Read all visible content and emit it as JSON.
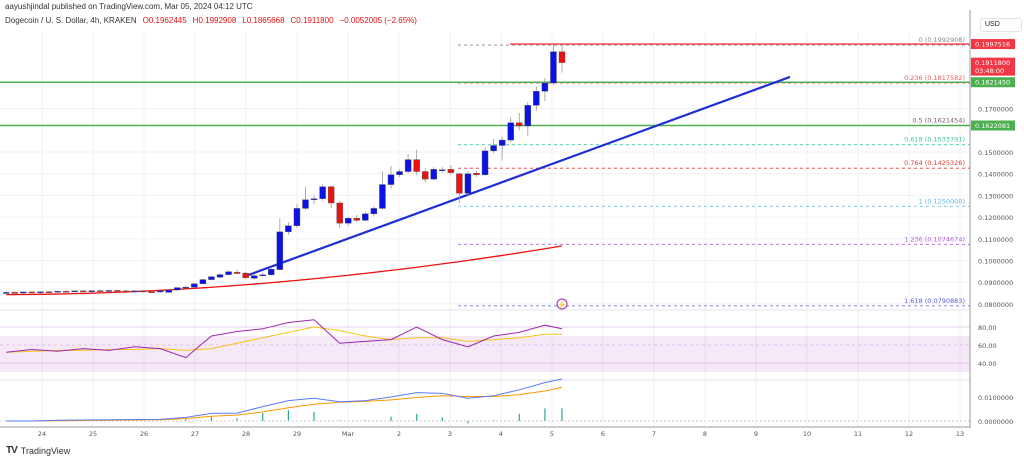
{
  "published": "aayushjindal published on TradingView.com, Mar 05, 2024 04:12 UTC",
  "legend": {
    "symbol": "Dogecoin / U. S. Dollar, 4h, KRAKEN",
    "open": "O0.1962445",
    "high": "H0.1992908",
    "low": "L0.1865668",
    "close": "C0.1911800",
    "change": "−0.0052005 (−2.65%)"
  },
  "currency_button": "USD",
  "brand": "TradingView",
  "colors": {
    "up": "#0a12e6",
    "down": "#ee1111",
    "ema": "#ee1111",
    "trend": "#1f2fd6",
    "green": "#4caf50",
    "rsi": "#9c27b0",
    "rsi_ma": "#f5c518",
    "macd": "#5b7cfa",
    "signal": "#ff9800",
    "hist": "#26a69a"
  },
  "price_axis": {
    "ticks": [
      "0.1700000",
      "0.1500000",
      "0.1400000",
      "0.1300000",
      "0.1200000",
      "0.1100000",
      "0.1000000",
      "0.0900000",
      "0.0800000"
    ],
    "tick_values": [
      0.17,
      0.15,
      0.14,
      0.13,
      0.12,
      0.11,
      0.1,
      0.09,
      0.08
    ],
    "badges": [
      {
        "text": "0.1997516",
        "value": 0.1997516,
        "color": "#f23645"
      },
      {
        "text": "0.1911800",
        "sub": "03:48:00",
        "value": 0.19118,
        "color": "#f23645"
      },
      {
        "text": "0.1821450",
        "value": 0.182145,
        "color": "#4caf50"
      },
      {
        "text": "0.1622081",
        "value": 0.1622081,
        "color": "#4caf50"
      }
    ]
  },
  "rsi_axis": [
    "80.00",
    "60.00",
    "40.00"
  ],
  "macd_axis": [
    "0.0100000",
    "0.0000000"
  ],
  "time_axis": [
    "24",
    "25",
    "26",
    "27",
    "28",
    "29",
    "Mar",
    "2",
    "3",
    "4",
    "5",
    "6",
    "7",
    "8",
    "9",
    "10",
    "11",
    "12",
    "13"
  ],
  "fib": [
    {
      "label": "0 (0.1992908)",
      "value": 0.1992908,
      "color": "#888888"
    },
    {
      "label": "0.236 (0.1817582)",
      "value": 0.1817582,
      "color": "#e65c5c"
    },
    {
      "label": "0.5 (0.1621454)",
      "value": 0.1621454,
      "color": "#7a5a6a"
    },
    {
      "label": "0.618 (0.1533791)",
      "value": 0.1533791,
      "color": "#3cc8a0"
    },
    {
      "label": "0.764 (0.1425326)",
      "value": 0.1425326,
      "color": "#e53935"
    },
    {
      "label": "1 (0.1250000)",
      "value": 0.125,
      "color": "#5ab8e8"
    },
    {
      "label": "1.236 (0.1074674)",
      "value": 0.1074674,
      "color": "#b45ad8"
    },
    {
      "label": "1.618 (0.0790883)",
      "value": 0.0790883,
      "color": "#5b5bd6"
    }
  ],
  "horizontal_levels": [
    {
      "value": 0.182145,
      "color": "#4caf50"
    },
    {
      "value": 0.1622081,
      "color": "#4caf50"
    },
    {
      "value": 0.1997516,
      "color": "#f23645"
    }
  ],
  "candles": [
    [
      0.085,
      0.0856,
      0.0846,
      0.0853
    ],
    [
      0.0853,
      0.0857,
      0.0848,
      0.085
    ],
    [
      0.085,
      0.0856,
      0.0847,
      0.0855
    ],
    [
      0.0855,
      0.0859,
      0.085,
      0.0853
    ],
    [
      0.0853,
      0.0858,
      0.0849,
      0.0856
    ],
    [
      0.0856,
      0.086,
      0.0851,
      0.0854
    ],
    [
      0.0854,
      0.086,
      0.0851,
      0.0858
    ],
    [
      0.0858,
      0.0862,
      0.0853,
      0.0857
    ],
    [
      0.0857,
      0.0862,
      0.0853,
      0.086
    ],
    [
      0.086,
      0.0864,
      0.0855,
      0.0858
    ],
    [
      0.0858,
      0.0863,
      0.0854,
      0.0861
    ],
    [
      0.0861,
      0.0866,
      0.0857,
      0.0859
    ],
    [
      0.0859,
      0.0864,
      0.0855,
      0.0862
    ],
    [
      0.0862,
      0.0866,
      0.0857,
      0.086
    ],
    [
      0.086,
      0.0865,
      0.0856,
      0.0858
    ],
    [
      0.0858,
      0.0863,
      0.0853,
      0.086
    ],
    [
      0.086,
      0.0864,
      0.0852,
      0.0856
    ],
    [
      0.0856,
      0.086,
      0.085,
      0.0853
    ],
    [
      0.0855,
      0.0862,
      0.0851,
      0.0861
    ],
    [
      0.0853,
      0.0866,
      0.0851,
      0.0864
    ],
    [
      0.0864,
      0.0878,
      0.086,
      0.0875
    ],
    [
      0.0875,
      0.0886,
      0.0872,
      0.0877
    ],
    [
      0.0877,
      0.0895,
      0.0874,
      0.0893
    ],
    [
      0.0893,
      0.0915,
      0.089,
      0.0912
    ],
    [
      0.0912,
      0.093,
      0.0908,
      0.0925
    ],
    [
      0.0923,
      0.094,
      0.0918,
      0.0935
    ],
    [
      0.0935,
      0.0955,
      0.093,
      0.0948
    ],
    [
      0.0946,
      0.0958,
      0.0938,
      0.094
    ],
    [
      0.0942,
      0.0948,
      0.0915,
      0.092
    ],
    [
      0.0918,
      0.0935,
      0.0912,
      0.093
    ],
    [
      0.0932,
      0.0945,
      0.0926,
      0.0934
    ],
    [
      0.0934,
      0.097,
      0.093,
      0.096
    ],
    [
      0.0958,
      0.1195,
      0.0955,
      0.1132
    ],
    [
      0.1132,
      0.1175,
      0.112,
      0.116
    ],
    [
      0.116,
      0.126,
      0.115,
      0.124
    ],
    [
      0.124,
      0.134,
      0.1232,
      0.128
    ],
    [
      0.128,
      0.13,
      0.126,
      0.1285
    ],
    [
      0.1285,
      0.135,
      0.1275,
      0.134
    ],
    [
      0.134,
      0.1345,
      0.124,
      0.1265
    ],
    [
      0.1265,
      0.1275,
      0.115,
      0.1172
    ],
    [
      0.1172,
      0.12,
      0.116,
      0.1195
    ],
    [
      0.1195,
      0.121,
      0.1178,
      0.1185
    ],
    [
      0.1185,
      0.1225,
      0.118,
      0.1215
    ],
    [
      0.1215,
      0.125,
      0.1205,
      0.124
    ],
    [
      0.124,
      0.141,
      0.1235,
      0.135
    ],
    [
      0.135,
      0.1435,
      0.133,
      0.1395
    ],
    [
      0.1395,
      0.142,
      0.1385,
      0.141
    ],
    [
      0.141,
      0.149,
      0.14,
      0.1465
    ],
    [
      0.1465,
      0.151,
      0.1395,
      0.141
    ],
    [
      0.141,
      0.1425,
      0.136,
      0.1375
    ],
    [
      0.1375,
      0.143,
      0.137,
      0.142
    ],
    [
      0.1415,
      0.143,
      0.1405,
      0.1418
    ],
    [
      0.142,
      0.144,
      0.1395,
      0.1405
    ],
    [
      0.14,
      0.1405,
      0.1265,
      0.131
    ],
    [
      0.131,
      0.141,
      0.13,
      0.14
    ],
    [
      0.1402,
      0.1415,
      0.1385,
      0.1395
    ],
    [
      0.1395,
      0.152,
      0.139,
      0.1505
    ],
    [
      0.1505,
      0.156,
      0.1495,
      0.153
    ],
    [
      0.153,
      0.157,
      0.146,
      0.1555
    ],
    [
      0.1555,
      0.166,
      0.1545,
      0.1635
    ],
    [
      0.1635,
      0.168,
      0.16,
      0.162
    ],
    [
      0.162,
      0.173,
      0.1575,
      0.1715
    ],
    [
      0.1715,
      0.18,
      0.169,
      0.178
    ],
    [
      0.178,
      0.184,
      0.1735,
      0.1818
    ],
    [
      0.1818,
      0.1993,
      0.181,
      0.1962
    ],
    [
      0.1962,
      0.1993,
      0.1866,
      0.1912
    ]
  ],
  "ema_start": 0.0843,
  "ema_end": 0.1067,
  "trendline": [
    0.0929,
    0.1846
  ],
  "rsi": [
    52,
    55,
    53,
    56,
    54,
    58,
    56,
    46,
    70,
    75,
    78,
    85,
    88,
    62,
    64,
    66,
    80,
    66,
    58,
    70,
    74,
    82,
    78
  ],
  "rsi_ma": [
    52,
    53,
    54,
    54,
    55,
    55,
    56,
    54,
    56,
    62,
    68,
    74,
    80,
    76,
    70,
    66,
    68,
    68,
    64,
    66,
    68,
    72,
    72
  ],
  "macd": [
    0,
    0,
    0.0003,
    0.0004,
    0.0005,
    0.0006,
    0.0007,
    0.0015,
    0.0032,
    0.0033,
    0.006,
    0.0085,
    0.0095,
    0.008,
    0.0085,
    0.01,
    0.0118,
    0.0115,
    0.0095,
    0.0105,
    0.013,
    0.016,
    0.0175
  ],
  "signal": [
    0,
    0,
    0.0001,
    0.0002,
    0.0003,
    0.0004,
    0.0005,
    0.001,
    0.002,
    0.0025,
    0.0038,
    0.0055,
    0.007,
    0.0078,
    0.0082,
    0.0088,
    0.0098,
    0.0105,
    0.0102,
    0.0102,
    0.011,
    0.0125,
    0.014
  ]
}
